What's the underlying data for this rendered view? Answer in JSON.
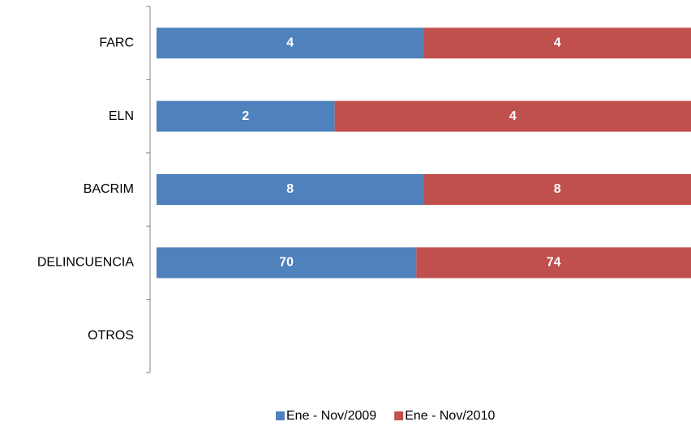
{
  "chart_data": {
    "type": "bar",
    "orientation": "horizontal",
    "stacked": "percent",
    "categories": [
      "FARC",
      "ELN",
      "BACRIM",
      "DELINCUENCIA",
      "OTROS"
    ],
    "series": [
      {
        "name": "Ene - Nov/2009",
        "color": "#4f81bd",
        "values": [
          4,
          2,
          8,
          70,
          0
        ]
      },
      {
        "name": "Ene - Nov/2010",
        "color": "#c0504d",
        "values": [
          4,
          4,
          8,
          74,
          0
        ]
      }
    ],
    "legend": "bottom"
  }
}
